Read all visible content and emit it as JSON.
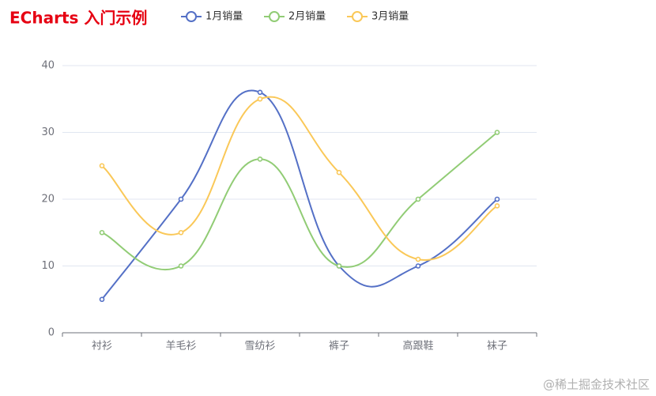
{
  "chart_data": {
    "type": "line",
    "title": "ECharts 入门示例",
    "smooth": true,
    "categories": [
      "衬衫",
      "羊毛衫",
      "雪纺衫",
      "裤子",
      "高跟鞋",
      "袜子"
    ],
    "series": [
      {
        "name": "1月销量",
        "color": "#5470c6",
        "values": [
          5,
          20,
          36,
          10,
          10,
          20
        ]
      },
      {
        "name": "2月销量",
        "color": "#91cc75",
        "values": [
          15,
          10,
          26,
          10,
          20,
          30
        ]
      },
      {
        "name": "3月销量",
        "color": "#fac858",
        "values": [
          25,
          15,
          35,
          24,
          11,
          19
        ]
      }
    ],
    "ylim": [
      0,
      40
    ],
    "yticks": [
      0,
      10,
      20,
      30,
      40
    ],
    "grid": true,
    "title_color": "#e60012"
  },
  "watermark": "@稀土掘金技术社区"
}
